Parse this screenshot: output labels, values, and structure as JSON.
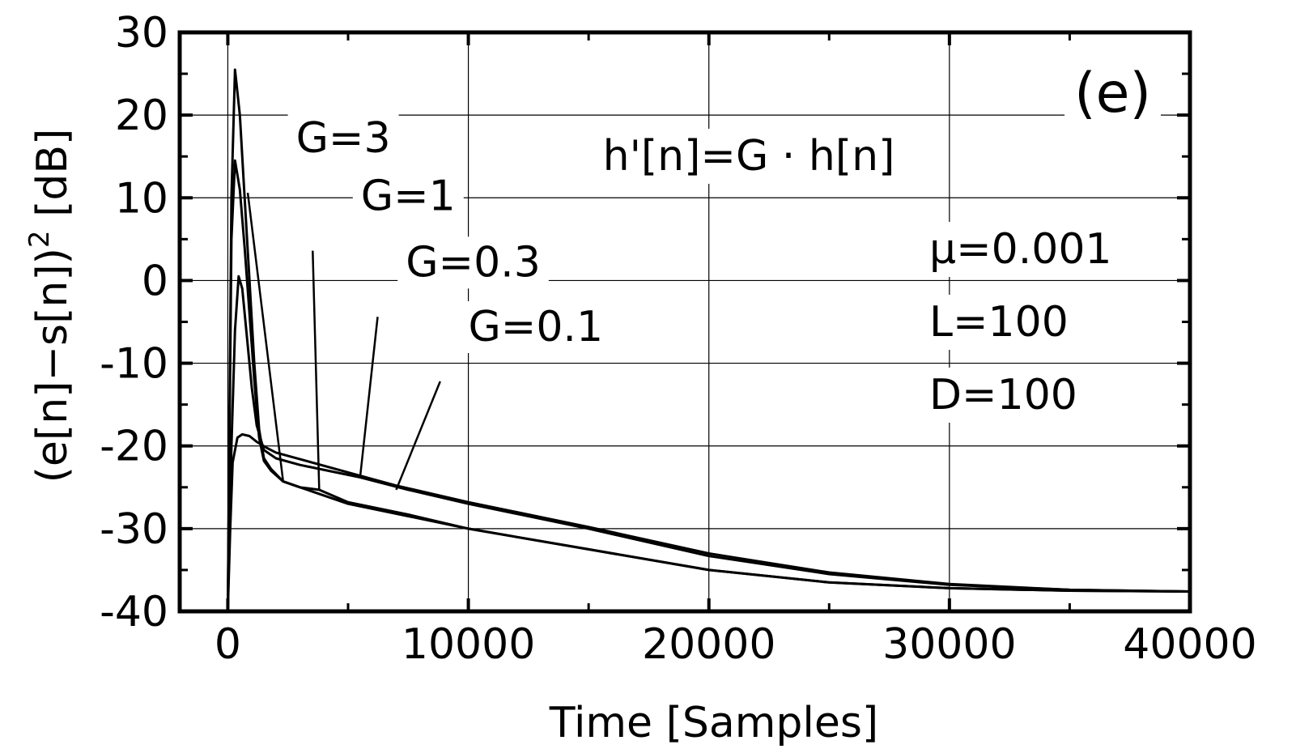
{
  "chart_data": {
    "type": "line",
    "title": "",
    "panel_label": "(e)",
    "xlabel": "Time [Samples]",
    "ylabel": "(e[n]−s[n])",
    "ylabel_sup": "2",
    "ylabel_unit": " [dB]",
    "xlim": [
      -2000,
      40000
    ],
    "ylim": [
      -40,
      30
    ],
    "xticks": [
      0,
      10000,
      20000,
      30000,
      40000
    ],
    "yticks": [
      30,
      20,
      10,
      0,
      -10,
      -20,
      -30,
      -40
    ],
    "grid": true,
    "annotations": {
      "equation": "h'[n]=G · h[n]",
      "mu": "μ=0.001",
      "L": "L=100",
      "D": "D=100"
    },
    "series": [
      {
        "name": "G=3",
        "label_at": [
          4800,
          15.5
        ],
        "arrow_to": [
          2300,
          -24.3
        ],
        "points": [
          [
            0,
            -40
          ],
          [
            150,
            10
          ],
          [
            300,
            25.5
          ],
          [
            500,
            20
          ],
          [
            700,
            10
          ],
          [
            900,
            0
          ],
          [
            1100,
            -10
          ],
          [
            1300,
            -18
          ],
          [
            1500,
            -21.5
          ],
          [
            1800,
            -22.8
          ],
          [
            2300,
            -24.3
          ],
          [
            3000,
            -25
          ],
          [
            5000,
            -27
          ],
          [
            7500,
            -28.5
          ],
          [
            10000,
            -30
          ],
          [
            15000,
            -32.5
          ],
          [
            20000,
            -35
          ],
          [
            25000,
            -36.5
          ],
          [
            30000,
            -37.2
          ],
          [
            35000,
            -37.5
          ],
          [
            40000,
            -37.6
          ]
        ]
      },
      {
        "name": "G=1",
        "label_at": [
          7500,
          8.5
        ],
        "arrow_to": [
          3800,
          -25.3
        ],
        "points": [
          [
            0,
            -40
          ],
          [
            150,
            5
          ],
          [
            300,
            14.5
          ],
          [
            500,
            11
          ],
          [
            700,
            4
          ],
          [
            900,
            -4
          ],
          [
            1100,
            -12
          ],
          [
            1300,
            -19
          ],
          [
            1500,
            -21.8
          ],
          [
            1800,
            -23
          ],
          [
            2300,
            -24.3
          ],
          [
            3000,
            -25
          ],
          [
            3800,
            -25.3
          ],
          [
            5000,
            -26.8
          ],
          [
            7500,
            -28.3
          ],
          [
            10000,
            -30
          ],
          [
            15000,
            -32.5
          ],
          [
            20000,
            -35
          ],
          [
            25000,
            -36.5
          ],
          [
            30000,
            -37.2
          ],
          [
            35000,
            -37.5
          ],
          [
            40000,
            -37.6
          ]
        ]
      },
      {
        "name": "G=0.3",
        "label_at": [
          10200,
          0.5
        ],
        "arrow_to": [
          5500,
          -23.8
        ],
        "points": [
          [
            0,
            -40
          ],
          [
            150,
            -20
          ],
          [
            300,
            -6
          ],
          [
            450,
            0.5
          ],
          [
            600,
            -1
          ],
          [
            800,
            -7
          ],
          [
            1000,
            -13
          ],
          [
            1200,
            -17.5
          ],
          [
            1500,
            -20.5
          ],
          [
            2000,
            -21.5
          ],
          [
            3000,
            -22.3
          ],
          [
            5500,
            -23.8
          ],
          [
            7500,
            -25.3
          ],
          [
            10000,
            -27
          ],
          [
            15000,
            -30
          ],
          [
            20000,
            -33.3
          ],
          [
            25000,
            -35.5
          ],
          [
            30000,
            -36.8
          ],
          [
            35000,
            -37.4
          ],
          [
            40000,
            -37.6
          ]
        ]
      },
      {
        "name": "G=0.1",
        "label_at": [
          12800,
          -7.3
        ],
        "arrow_to": [
          7000,
          -25.3
        ],
        "points": [
          [
            0,
            -40
          ],
          [
            100,
            -30
          ],
          [
            200,
            -22
          ],
          [
            400,
            -19
          ],
          [
            600,
            -18.6
          ],
          [
            900,
            -18.8
          ],
          [
            1200,
            -19.5
          ],
          [
            1600,
            -20.2
          ],
          [
            2000,
            -20.8
          ],
          [
            3000,
            -21.6
          ],
          [
            5000,
            -23.2
          ],
          [
            7000,
            -24.8
          ],
          [
            10000,
            -26.8
          ],
          [
            15000,
            -29.8
          ],
          [
            20000,
            -33
          ],
          [
            25000,
            -35.3
          ],
          [
            30000,
            -36.7
          ],
          [
            35000,
            -37.4
          ],
          [
            40000,
            -37.6
          ]
        ]
      }
    ]
  }
}
